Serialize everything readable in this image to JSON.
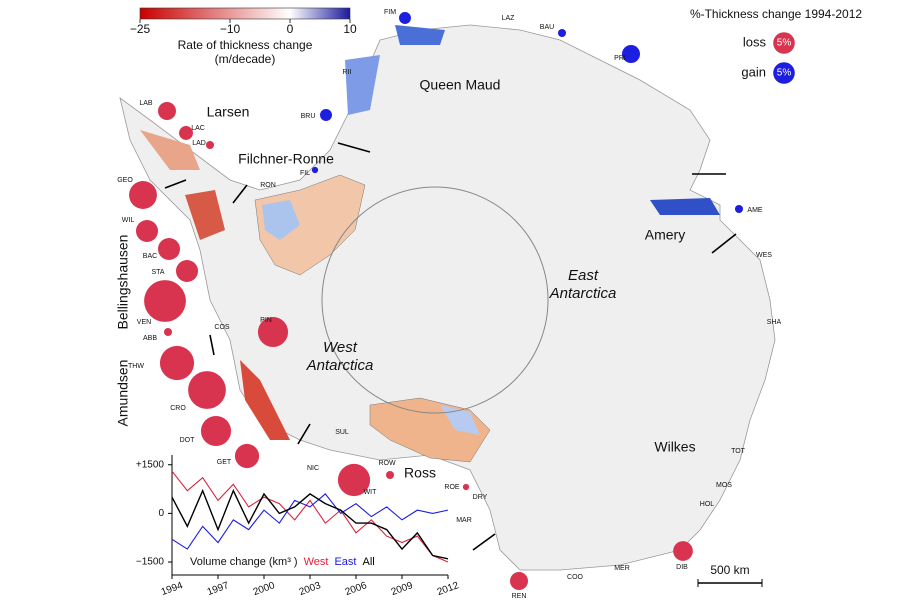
{
  "colorbar": {
    "title_lines": [
      "Rate of thickness change",
      "(m/decade)"
    ],
    "lim": [
      -25,
      10
    ],
    "ticks": [
      {
        "value": -25,
        "label": "−25"
      },
      {
        "value": -10,
        "label": "−10"
      },
      0,
      10
    ],
    "colors": {
      "low": "#c80000",
      "mid": "#ffffff",
      "high": "#1a1a9e"
    }
  },
  "legend": {
    "title": "%-Thickness change 1994-2012",
    "items": [
      {
        "name": "loss",
        "label": "5%",
        "value": -5,
        "color": "#d8344f"
      },
      {
        "name": "gain",
        "label": "5%",
        "value": 5,
        "color": "#1e1ee0"
      }
    ]
  },
  "regions": [
    "Queen Maud",
    "Larsen",
    "Filchner-Ronne",
    "Bellingshausen",
    "Amundsen",
    "Ross",
    "Amery",
    "Wilkes"
  ],
  "subcontinents": [
    [
      "West",
      "Antarctica"
    ],
    [
      "East",
      "Antarctica"
    ]
  ],
  "shelves": [
    {
      "name": "FIM",
      "change": 2.2
    },
    {
      "name": "LAZ",
      "change": null
    },
    {
      "name": "BAU",
      "change": 1
    },
    {
      "name": "PRI",
      "change": 5
    },
    {
      "name": "RII",
      "change": null
    },
    {
      "name": "BRU",
      "change": 2.2
    },
    {
      "name": "LAB",
      "change": -5
    },
    {
      "name": "LAC",
      "change": -3
    },
    {
      "name": "LAD",
      "change": -1
    },
    {
      "name": "FIL",
      "change": 0.6
    },
    {
      "name": "RON",
      "change": null
    },
    {
      "name": "GEO",
      "change": -12
    },
    {
      "name": "WIL",
      "change": -7.5
    },
    {
      "name": "BAC",
      "change": -7.5
    },
    {
      "name": "STA",
      "change": -7.5
    },
    {
      "name": "VEN",
      "change": -27
    },
    {
      "name": "ABB",
      "change": -1
    },
    {
      "name": "COS",
      "change": null
    },
    {
      "name": "PIN",
      "change": -14
    },
    {
      "name": "THW",
      "change": -18
    },
    {
      "name": "CRO",
      "change": -22
    },
    {
      "name": "DOT",
      "change": -14
    },
    {
      "name": "GET",
      "change": -9
    },
    {
      "name": "NIC",
      "change": null
    },
    {
      "name": "SUL",
      "change": null
    },
    {
      "name": "ROW",
      "change": -1
    },
    {
      "name": "WIT",
      "change": -16
    },
    {
      "name": "ROE",
      "change": -0.6
    },
    {
      "name": "DRY",
      "change": null
    },
    {
      "name": "MAR",
      "change": null
    },
    {
      "name": "REN",
      "change": -5
    },
    {
      "name": "COO",
      "change": null
    },
    {
      "name": "MER",
      "change": null
    },
    {
      "name": "DIB",
      "change": -6
    },
    {
      "name": "HOL",
      "change": null
    },
    {
      "name": "MOS",
      "change": null
    },
    {
      "name": "TOT",
      "change": null
    },
    {
      "name": "SHA",
      "change": null
    },
    {
      "name": "WES",
      "change": null
    },
    {
      "name": "AME",
      "change": 1
    }
  ],
  "scale_bar": "500 km",
  "chart_data": {
    "type": "line",
    "title": "Volume change (km³ )",
    "x": [
      1994,
      1995,
      1996,
      1997,
      1998,
      1999,
      2000,
      2001,
      2002,
      2003,
      2004,
      2005,
      2006,
      2007,
      2008,
      2009,
      2010,
      2011,
      2012
    ],
    "xlim": [
      1994,
      2012
    ],
    "xticks": [
      1994,
      1997,
      2000,
      2003,
      2006,
      2009,
      2012
    ],
    "ylim": [
      -1900,
      1800
    ],
    "yticks": [
      {
        "value": 1500,
        "label": "+1500"
      },
      0,
      {
        "value": -1500,
        "label": "−1500"
      }
    ],
    "series": [
      {
        "name": "West",
        "color": "#e0203c",
        "values": [
          1300,
          700,
          1100,
          400,
          900,
          200,
          500,
          300,
          -200,
          400,
          -300,
          100,
          -600,
          -200,
          -700,
          -900,
          -700,
          -1300,
          -1500
        ]
      },
      {
        "name": "East",
        "color": "#1a1ae0",
        "values": [
          -800,
          -1100,
          -400,
          -900,
          -200,
          -500,
          100,
          -300,
          400,
          200,
          600,
          0,
          300,
          -100,
          200,
          -200,
          100,
          0,
          100
        ]
      },
      {
        "name": "All",
        "color": "#000000",
        "values": [
          500,
          -400,
          700,
          -500,
          700,
          -300,
          600,
          0,
          200,
          600,
          300,
          100,
          -300,
          -300,
          -500,
          -1100,
          -600,
          -1300,
          -1400
        ]
      }
    ]
  }
}
